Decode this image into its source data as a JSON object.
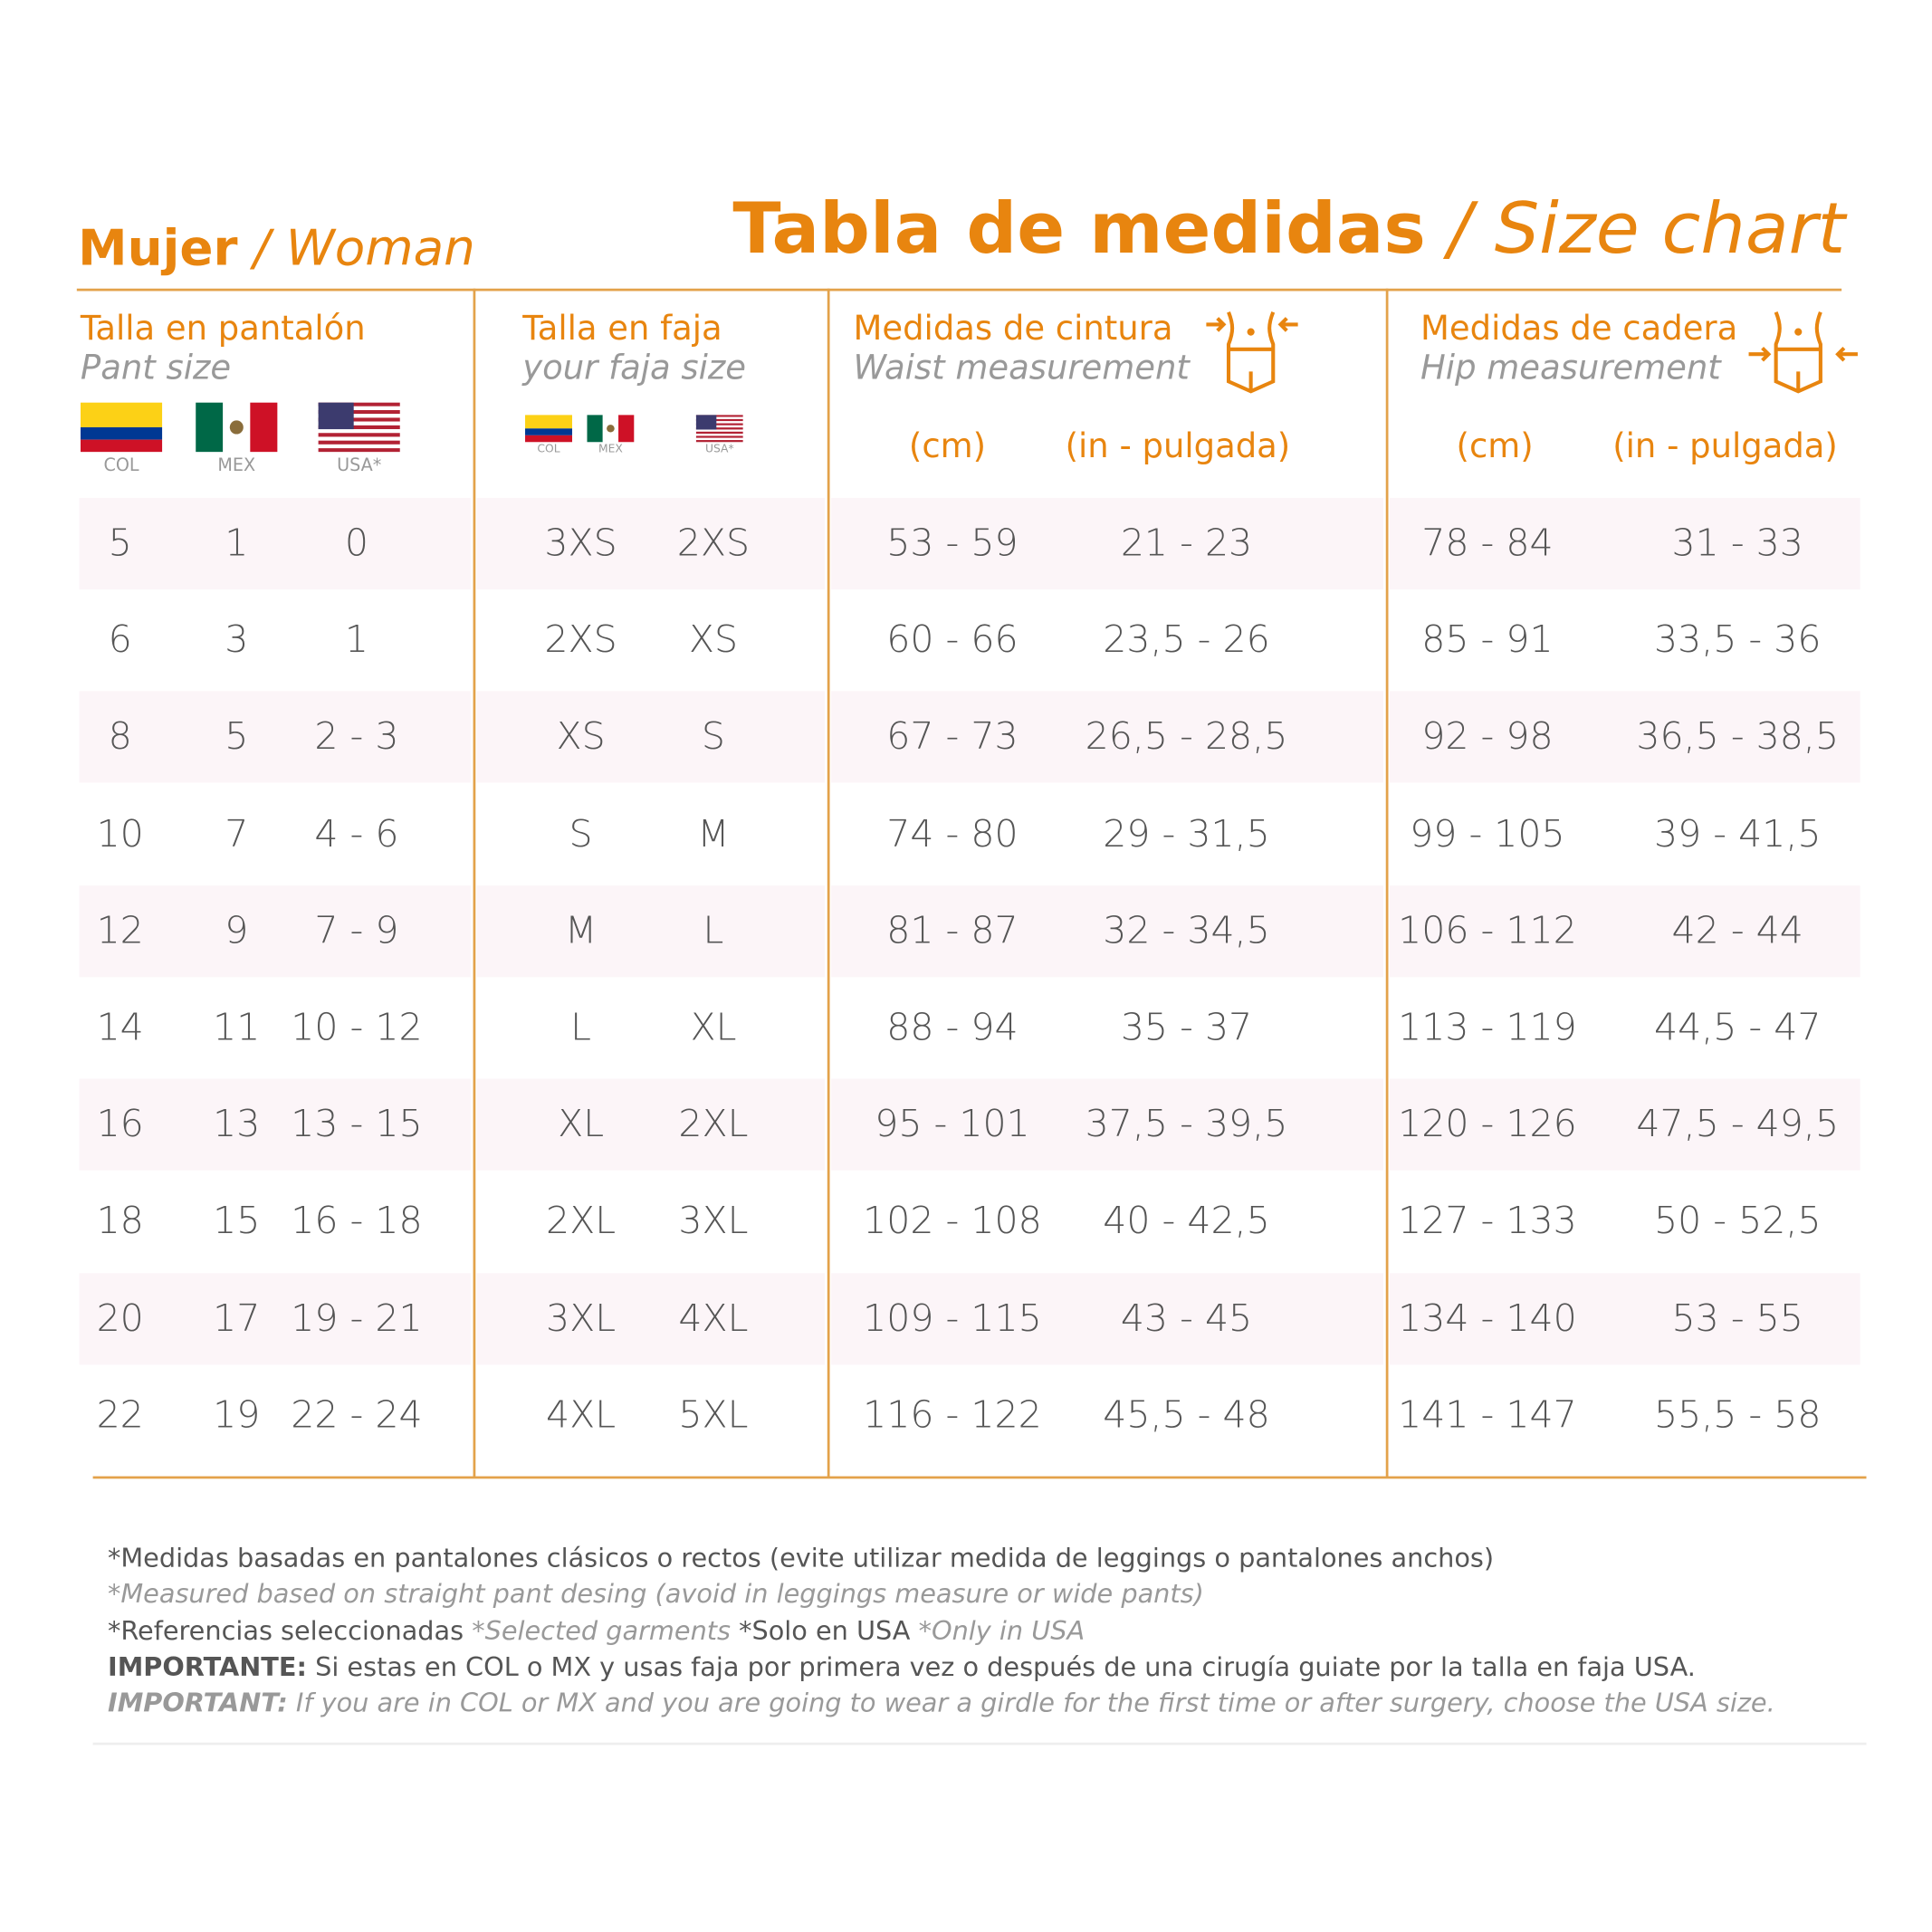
{
  "header": {
    "woman": {
      "es": "Mujer",
      "sep": "/",
      "en": "Woman"
    },
    "title": {
      "es": "Tabla de medidas",
      "sep": "/",
      "en": "Size chart"
    }
  },
  "columns": [
    {
      "es": "Talla en pantalón",
      "en": "Pant size",
      "flags": [
        "COL",
        "MEX",
        "USA*"
      ]
    },
    {
      "es": "Talla en faja",
      "en": "your faja size",
      "flags": [
        "COL",
        "MEX",
        "USA*"
      ]
    },
    {
      "es": "Medidas de cintura",
      "en": "Waist measurement",
      "units": [
        "(cm)",
        "(in - pulgada)"
      ]
    },
    {
      "es": "Medidas de cadera",
      "en": "Hip measurement",
      "units": [
        "(cm)",
        "(in - pulgada)"
      ]
    }
  ],
  "rows": [
    [
      "5",
      "1",
      "0",
      "3XS",
      "2XS",
      "53 - 59",
      "21 - 23",
      "78 - 84",
      "31 - 33"
    ],
    [
      "6",
      "3",
      "1",
      "2XS",
      "XS",
      "60 - 66",
      "23,5 - 26",
      "85 - 91",
      "33,5 - 36"
    ],
    [
      "8",
      "5",
      "2 - 3",
      "XS",
      "S",
      "67 - 73",
      "26,5 - 28,5",
      "92 - 98",
      "36,5 - 38,5"
    ],
    [
      "10",
      "7",
      "4 - 6",
      "S",
      "M",
      "74 - 80",
      "29 - 31,5",
      "99 - 105",
      "39 - 41,5"
    ],
    [
      "12",
      "9",
      "7 - 9",
      "M",
      "L",
      "81 - 87",
      "32 - 34,5",
      "106 - 112",
      "42 - 44"
    ],
    [
      "14",
      "11",
      "10 - 12",
      "L",
      "XL",
      "88 - 94",
      "35 - 37",
      "113 - 119",
      "44,5 - 47"
    ],
    [
      "16",
      "13",
      "13 - 15",
      "XL",
      "2XL",
      "95 - 101",
      "37,5 - 39,5",
      "120 - 126",
      "47,5 - 49,5"
    ],
    [
      "18",
      "15",
      "16 - 18",
      "2XL",
      "3XL",
      "102 - 108",
      "40 - 42,5",
      "127 - 133",
      "50 - 52,5"
    ],
    [
      "20",
      "17",
      "19 - 21",
      "3XL",
      "4XL",
      "109 - 115",
      "43 - 45",
      "134 - 140",
      "53 - 55"
    ],
    [
      "22",
      "19",
      "22 - 24",
      "4XL",
      "5XL",
      "116 - 122",
      "45,5 - 48",
      "141 - 147",
      "55,5 - 58"
    ]
  ],
  "footnotes": [
    [
      "*Medidas basadas en pantalones clásicos o rectos (evite utilizar medida de leggings o pantalones anchos)"
    ],
    [
      "*Measured based on straight pant desing (avoid in leggings measure or wide pants)"
    ],
    [
      "*Referencias seleccionadas ",
      "*Selected garments",
      " *Solo en USA ",
      "*Only in USA"
    ],
    [
      "IMPORTANTE:",
      " Si estas en COL o MX y usas faja por primera vez o después de una cirugía guiate por la talla en faja USA."
    ],
    [
      "IMPORTANT:",
      " If you are in COL or MX and you are going to wear a girdle for the first time or after surgery, choose the USA size."
    ]
  ]
}
